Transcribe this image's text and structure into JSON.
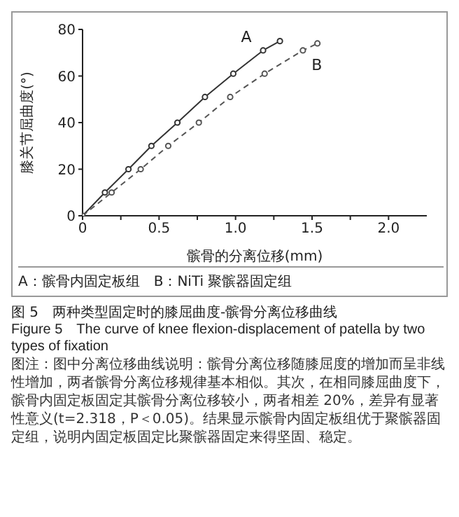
{
  "chart_data": {
    "type": "line",
    "title": "图 5　两种类型固定时的膝屈曲度-髌骨分离位移曲线",
    "subtitle": "Figure 5　The curve of knee flexion-displacement of patella by two types of fixation",
    "xlabel": "髌骨的分离位移(mm)",
    "ylabel": "膝关节屈曲度(°)",
    "annotations": [
      "A：髌骨内固定板组　B：NiTi 聚髌器固定组",
      "图注：图中分离位移曲线说明：髌骨分离位移随膝屈度的增加而呈非线性增加，两者髌骨分离位移规律基本相似。其次，在相同膝屈曲度下，髌骨内固定板固定其髌骨分离位移较小，两者相差 20%，差异有显著性意义(t=2.318，P＜0.05)。结果显示髌骨内固定板组优于聚髌器固定组，说明内固定板固定比聚髌器固定来得坚固、稳定。"
    ],
    "series": [
      {
        "name": "A",
        "color": "#333333",
        "line_style": "solid",
        "x": [
          0,
          0.146,
          0.3,
          0.45,
          0.62,
          0.8,
          0.985,
          1.18,
          1.29
        ],
        "values": [
          0,
          10,
          20,
          30,
          40,
          51,
          61,
          71,
          75
        ]
      },
      {
        "name": "B",
        "color": "#555555",
        "line_style": "dashed",
        "x": [
          0,
          0.19,
          0.38,
          0.56,
          0.76,
          0.965,
          1.19,
          1.44,
          1.535
        ],
        "values": [
          0,
          10,
          20,
          30,
          40,
          51,
          61,
          71,
          74
        ]
      }
    ],
    "xlim": [
      0,
      2.25
    ],
    "xticks": [
      0,
      {
        "value": 0.25,
        "label": null
      },
      {
        "value": 0.5,
        "label": "0.5"
      },
      {
        "value": 0.75,
        "label": null
      },
      {
        "value": 1,
        "label": "1.0"
      },
      {
        "value": 1.25,
        "label": null
      },
      {
        "value": 1.5,
        "label": "1.5"
      },
      {
        "value": 1.75,
        "label": null
      },
      {
        "value": 2,
        "label": "2.0"
      }
    ],
    "ylim": [
      0,
      80
    ],
    "yticks": [
      0,
      20,
      40,
      60,
      80
    ],
    "marker": "circle"
  }
}
